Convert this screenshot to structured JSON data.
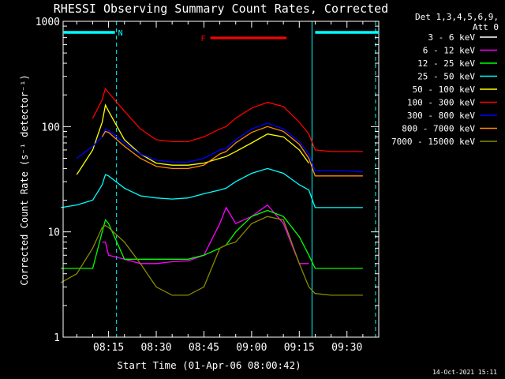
{
  "chart_data": {
    "type": "line",
    "title": "RHESSI Observing Summary Count Rates, Corrected",
    "xlabel": "Start Time (01-Apr-06 08:00:42)",
    "ylabel": "Corrected Count Rate (s⁻¹ detector⁻¹)",
    "yscale": "log",
    "ylim": [
      1,
      1000
    ],
    "xlim_minutes": [
      0.7,
      100
    ],
    "x_tick_minutes": [
      15,
      30,
      45,
      60,
      75,
      90
    ],
    "x_tick_labels": [
      "08:15",
      "08:30",
      "08:45",
      "09:00",
      "09:15",
      "09:30"
    ],
    "y_tick_values": [
      1,
      10,
      100,
      1000
    ],
    "y_tick_labels": [
      "1",
      "10",
      "100",
      "1000"
    ],
    "legend_header": [
      "Det 1,3,4,5,6,9,",
      "Att 0"
    ],
    "legend_position": "right",
    "timestamp": "14-Oct-2021 15:11",
    "annotations": {
      "night_label": "N",
      "night_bars": [
        [
          0.7,
          17
        ],
        [
          80,
          100
        ]
      ],
      "night_boundaries": [
        0.7,
        17.5,
        79,
        99
      ],
      "flare_label": "F",
      "flare_bar": [
        47,
        71
      ]
    },
    "x": [
      0,
      5,
      10,
      13,
      14,
      15,
      20,
      25,
      30,
      35,
      40,
      45,
      50,
      52,
      55,
      60,
      65,
      70,
      75,
      78,
      80,
      85,
      90,
      95
    ],
    "series": [
      {
        "name": "3 - 6 keV",
        "color": "#ffffff",
        "values": [
          null,
          null,
          null,
          null,
          null,
          null,
          null,
          null,
          null,
          null,
          null,
          null,
          null,
          null,
          null,
          null,
          null,
          null,
          null,
          null,
          null,
          null,
          null,
          null
        ]
      },
      {
        "name": "6 - 12 keV",
        "color": "#ff00ff",
        "values": [
          null,
          null,
          null,
          8,
          8,
          6,
          5.5,
          5,
          5,
          5.2,
          5.3,
          6,
          12,
          17,
          12,
          14,
          18,
          12,
          5,
          5,
          null,
          null,
          null,
          null
        ]
      },
      {
        "name": "12 - 25 keV",
        "color": "#00ff00",
        "values": [
          4.5,
          4.5,
          4.5,
          10,
          13,
          12,
          5.5,
          5.5,
          5.5,
          5.5,
          5.5,
          6,
          7,
          7.5,
          10,
          14,
          16,
          14,
          9,
          6,
          4.5,
          4.5,
          4.5,
          4.5
        ]
      },
      {
        "name": "25 - 50 keV",
        "color": "#00ffff",
        "values": [
          17,
          18,
          20,
          28,
          35,
          34,
          26,
          22,
          21,
          20.5,
          21,
          23,
          25,
          26,
          30,
          36,
          40,
          36,
          28,
          25,
          17,
          17,
          17,
          17
        ]
      },
      {
        "name": "50 - 100 keV",
        "color": "#ffff00",
        "values": [
          null,
          35,
          60,
          110,
          160,
          140,
          75,
          55,
          45,
          43,
          43,
          45,
          50,
          52,
          58,
          70,
          85,
          80,
          60,
          45,
          null,
          null,
          null,
          null
        ]
      },
      {
        "name": "100 - 300 keV",
        "color": "#ff0000",
        "values": [
          null,
          null,
          120,
          180,
          230,
          210,
          140,
          95,
          75,
          72,
          72,
          80,
          95,
          100,
          120,
          150,
          170,
          155,
          110,
          85,
          60,
          58,
          58,
          58
        ]
      },
      {
        "name": "300 - 800 keV",
        "color": "#0000ff",
        "values": [
          null,
          50,
          65,
          80,
          95,
          92,
          70,
          55,
          48,
          46,
          46,
          50,
          60,
          62,
          75,
          95,
          108,
          95,
          72,
          55,
          38,
          38,
          38,
          37
        ]
      },
      {
        "name": "800 - 7000 keV",
        "color": "#ff8c00",
        "values": [
          null,
          null,
          null,
          80,
          90,
          88,
          65,
          50,
          42,
          40,
          40,
          43,
          55,
          58,
          70,
          88,
          100,
          90,
          68,
          50,
          34,
          34,
          34,
          34
        ]
      },
      {
        "name": "7000 - 15000 keV",
        "color": "#8b8b00",
        "values": [
          3.3,
          4,
          7,
          11,
          11.5,
          11,
          8,
          5,
          3,
          2.5,
          2.5,
          3,
          7,
          7.5,
          8,
          12,
          14,
          13,
          5,
          3,
          2.6,
          2.5,
          2.5,
          2.5
        ]
      }
    ]
  }
}
